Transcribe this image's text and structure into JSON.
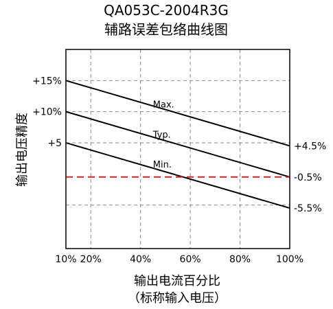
{
  "chart_data": {
    "type": "line",
    "title": "QA053C-2004R3G",
    "subtitle": "辅路误差包络曲线图",
    "xlabel": "输出电流百分比",
    "xlabel_sub": "（标称输入电压）",
    "ylabel": "输出电压精度",
    "xlim": [
      10,
      100
    ],
    "ylim": [
      -12,
      20
    ],
    "x_ticks": [
      {
        "value": 10,
        "label": "10%"
      },
      {
        "value": 20,
        "label": "20%"
      },
      {
        "value": 40,
        "label": "40%"
      },
      {
        "value": 60,
        "label": "60%"
      },
      {
        "value": 80,
        "label": "80%"
      },
      {
        "value": 100,
        "label": "100%"
      }
    ],
    "y_ticks_left": [
      {
        "value": 15,
        "label": "+15%"
      },
      {
        "value": 10,
        "label": "+10%"
      },
      {
        "value": 5,
        "label": "+5"
      }
    ],
    "y_ticks_right": [
      {
        "value": 4.5,
        "label": "+4.5%"
      },
      {
        "value": -0.5,
        "label": "-0.5%"
      },
      {
        "value": -5.5,
        "label": "-5.5%"
      }
    ],
    "grid": true,
    "grid_x": [
      20,
      40,
      60,
      80
    ],
    "grid_y": [
      15,
      10,
      5,
      -5
    ],
    "series": [
      {
        "name": "Max.",
        "x": [
          10,
          100
        ],
        "y": [
          15,
          4.5
        ],
        "color": "#000000",
        "label_at": [
          45,
          10.7
        ]
      },
      {
        "name": "Typ.",
        "x": [
          10,
          100
        ],
        "y": [
          10,
          -0.5
        ],
        "color": "#000000",
        "label_at": [
          45,
          5.8
        ]
      },
      {
        "name": "Min.",
        "x": [
          10,
          100
        ],
        "y": [
          5,
          -5.5
        ],
        "color": "#000000",
        "label_at": [
          45,
          1.0
        ]
      }
    ],
    "reference_line": {
      "y": -0.5,
      "color": "#d62020",
      "style": "dashed"
    }
  }
}
